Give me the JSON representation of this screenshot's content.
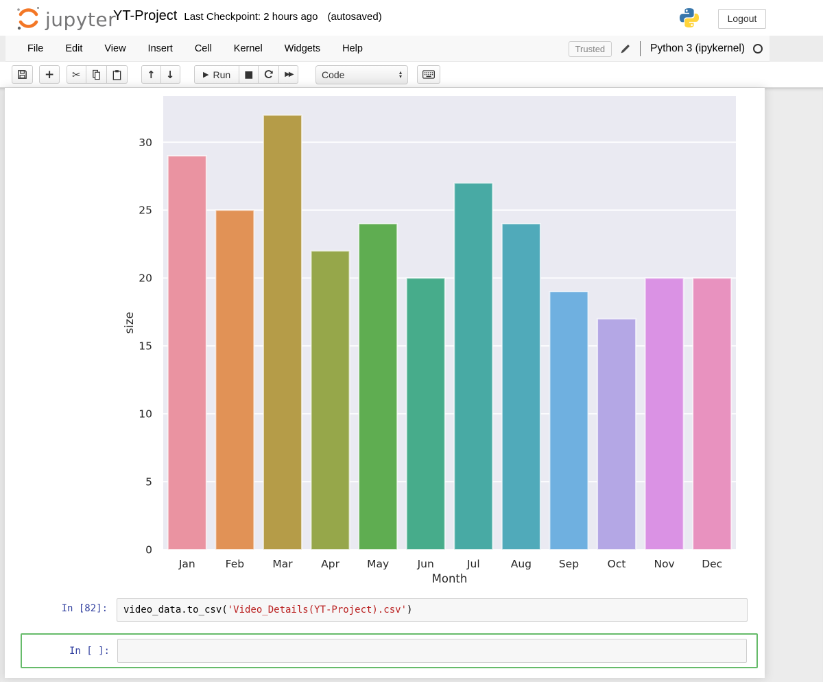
{
  "header": {
    "logo_text": "jupyter",
    "title": "YT-Project",
    "checkpoint": "Last Checkpoint: 2 hours ago",
    "autosaved": "(autosaved)",
    "logout_label": "Logout"
  },
  "menubar": {
    "items": [
      "File",
      "Edit",
      "View",
      "Insert",
      "Cell",
      "Kernel",
      "Widgets",
      "Help"
    ],
    "trusted_label": "Trusted",
    "kernel_name": "Python 3 (ipykernel)"
  },
  "toolbar": {
    "run_label": "Run",
    "cell_type": "Code"
  },
  "chart_data": {
    "type": "bar",
    "title": "",
    "categories": [
      "Jan",
      "Feb",
      "Mar",
      "Apr",
      "May",
      "Jun",
      "Jul",
      "Aug",
      "Sep",
      "Oct",
      "Nov",
      "Dec"
    ],
    "values": [
      29,
      25,
      32,
      22,
      24,
      20,
      27,
      24,
      19,
      17,
      20,
      20
    ],
    "bar_colors": [
      "#ea93a1",
      "#e19256",
      "#b59c48",
      "#96a74a",
      "#5fad51",
      "#47ac8b",
      "#48aaa4",
      "#50aaba",
      "#6fb0e0",
      "#b4a7e5",
      "#da92e4",
      "#e892bf"
    ],
    "xlabel": "Month",
    "ylabel": "size",
    "yticks": [
      0,
      5,
      10,
      15,
      20,
      25,
      30
    ],
    "ylim": [
      0,
      33.4
    ],
    "plot_bg": "#eaeaf2",
    "grid": true,
    "legend": "none"
  },
  "cells": {
    "code_cell": {
      "prompt": "In [82]:",
      "tokens": [
        {
          "text": "video_data.to_csv(",
          "type": "plain"
        },
        {
          "text": "'Video_Details(YT-Project).csv'",
          "type": "string"
        },
        {
          "text": ")",
          "type": "plain"
        }
      ]
    },
    "empty_cell": {
      "prompt": "In [ ]:"
    }
  },
  "colors": {
    "accent_orange": "#f37726",
    "prompt_blue": "#303f9f",
    "string_red": "#ba2121",
    "selected_cell_green": "#66bb6a",
    "plot_background": "#eaeaf2"
  }
}
